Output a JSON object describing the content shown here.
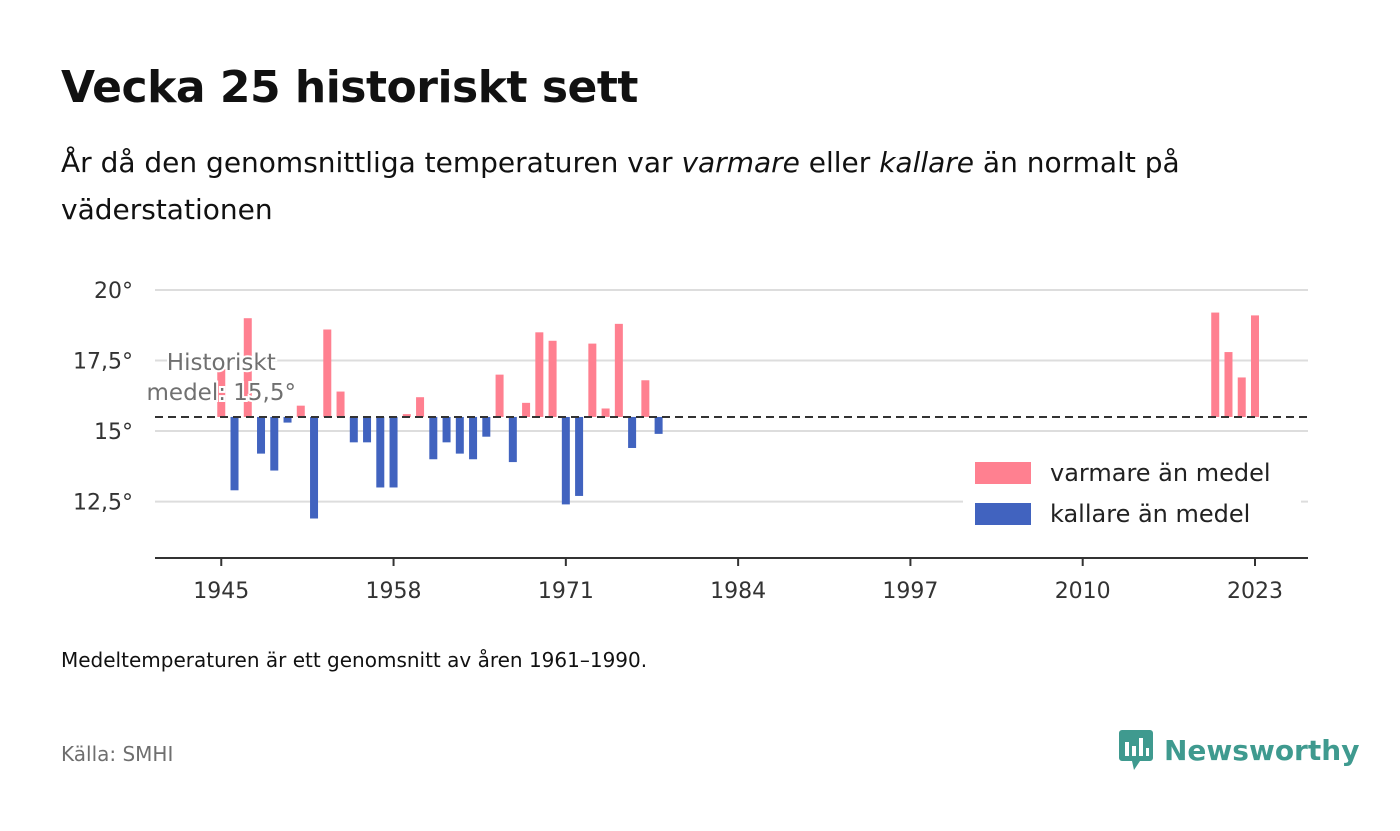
{
  "header": {
    "title": "Vecka 25 historiskt sett",
    "subtitle_pre": "År då den genomsnittliga temperaturen var ",
    "subtitle_em1": "varmare",
    "subtitle_mid": " eller ",
    "subtitle_em2": "kallare",
    "subtitle_post": " än normalt på väderstationen"
  },
  "footer": {
    "note": "Medeltemperaturen är ett genomsnitt av åren 1961–1990.",
    "source": "Källa: SMHI",
    "brand": "Newsworthy",
    "brand_icon": "newsworthy-logo-icon"
  },
  "colors": {
    "warmer": "#ff8090",
    "colder": "#4163bf",
    "gridline": "#dddddd",
    "axis": "#333333",
    "reference_line": "#333333",
    "brand": "#3f9a8f"
  },
  "chart_data": {
    "type": "bar",
    "baseline": 15.5,
    "reference_label_line1": "Historiskt",
    "reference_label_line2": "medel: 15,5°",
    "xlim": [
      1940,
      2027
    ],
    "ylim": [
      10.5,
      20
    ],
    "y_ticks": [
      20,
      17.5,
      15,
      12.5
    ],
    "y_tick_labels": [
      "20°",
      "17,5°",
      "15°",
      "12,5°"
    ],
    "x_ticks": [
      1945,
      1958,
      1971,
      1984,
      1997,
      2010,
      2023
    ],
    "x_tick_labels": [
      "1945",
      "1958",
      "1971",
      "1984",
      "1997",
      "2010",
      "2023"
    ],
    "grid": true,
    "legend_position": "right",
    "legend": [
      {
        "label": "varmare än medel",
        "color": "#ff8090"
      },
      {
        "label": "kallare än medel",
        "color": "#4163bf"
      }
    ],
    "years": [
      1945,
      1946,
      1947,
      1948,
      1949,
      1950,
      1951,
      1952,
      1953,
      1954,
      1955,
      1956,
      1957,
      1958,
      1959,
      1960,
      1961,
      1962,
      1963,
      1964,
      1965,
      1966,
      1967,
      1968,
      1969,
      1970,
      1971,
      1972,
      1973,
      1974,
      1975,
      1976,
      1977,
      1978,
      2020,
      2021,
      2022,
      2023
    ],
    "values": [
      17.2,
      12.9,
      19.0,
      14.2,
      13.6,
      15.3,
      15.9,
      11.9,
      18.6,
      16.4,
      14.6,
      14.6,
      13.0,
      13.0,
      15.6,
      16.2,
      14.0,
      14.6,
      14.2,
      14.0,
      14.8,
      17.0,
      13.9,
      16.0,
      18.5,
      18.2,
      12.4,
      12.7,
      18.1,
      15.8,
      18.8,
      14.4,
      16.8,
      14.9,
      19.2,
      17.8,
      16.9,
      19.1
    ]
  }
}
